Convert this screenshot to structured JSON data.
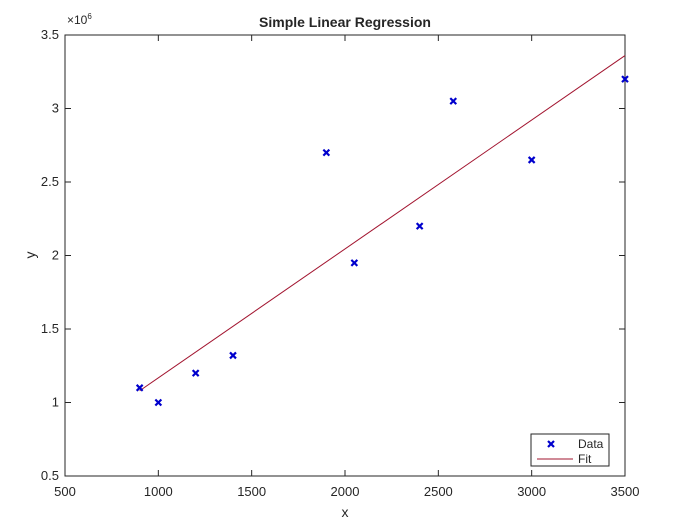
{
  "chart_data": {
    "type": "scatter",
    "title": "Simple Linear Regression",
    "xlabel": "x",
    "ylabel": "y",
    "xlim": [
      500,
      3500
    ],
    "ylim": [
      500000,
      3500000
    ],
    "x_ticks": [
      500,
      1000,
      1500,
      2000,
      2500,
      3000,
      3500
    ],
    "x_tick_labels": [
      "500",
      "1000",
      "1500",
      "2000",
      "2500",
      "3000",
      "3500"
    ],
    "y_ticks": [
      500000,
      1000000,
      1500000,
      2000000,
      2500000,
      3000000,
      3500000
    ],
    "y_tick_labels": [
      "0.5",
      "1",
      "1.5",
      "2",
      "2.5",
      "3",
      "3.5"
    ],
    "y_exponent_label": "×10",
    "y_exponent_power": "6",
    "grid": false,
    "legend_position": "bottom-right",
    "series": [
      {
        "name": "Data",
        "kind": "scatter",
        "marker": "x",
        "color": "#0000cd",
        "points": [
          {
            "x": 900,
            "y": 1100000
          },
          {
            "x": 1000,
            "y": 1000000
          },
          {
            "x": 1200,
            "y": 1200000
          },
          {
            "x": 1400,
            "y": 1320000
          },
          {
            "x": 1900,
            "y": 2700000
          },
          {
            "x": 2050,
            "y": 1950000
          },
          {
            "x": 2400,
            "y": 2200000
          },
          {
            "x": 2580,
            "y": 3050000
          },
          {
            "x": 3000,
            "y": 2650000
          },
          {
            "x": 3500,
            "y": 3200000
          }
        ]
      },
      {
        "name": "Fit",
        "kind": "line",
        "color": "#a2142f",
        "points": [
          {
            "x": 900,
            "y": 1080000
          },
          {
            "x": 3500,
            "y": 3360000
          }
        ]
      }
    ]
  }
}
